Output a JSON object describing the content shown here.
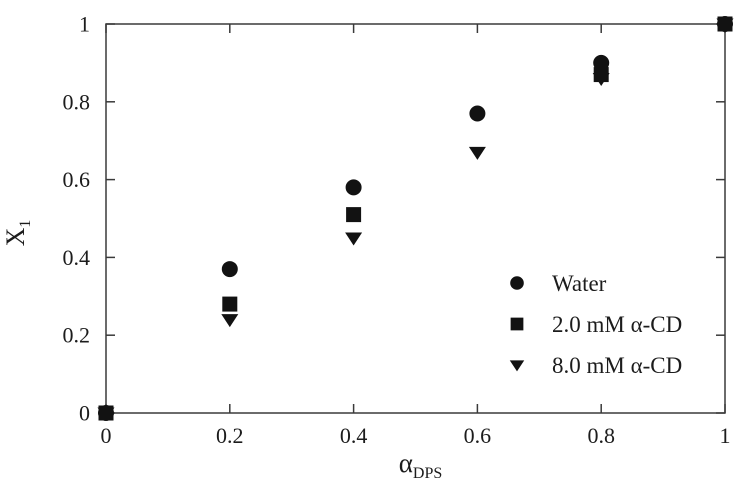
{
  "figure": {
    "background": "#ffffff",
    "marker_color": "#121212",
    "axis_color": "#3a3a3a",
    "text_color": "#1c1c1c"
  },
  "chart_data": {
    "type": "scatter",
    "title": "",
    "xlabel": {
      "main": "α",
      "sub": "DPS"
    },
    "ylabel": {
      "main": "X",
      "sub": "1"
    },
    "xlim": [
      0,
      1
    ],
    "ylim": [
      0,
      1
    ],
    "grid": false,
    "x": [
      0,
      0.2,
      0.4,
      0.6,
      0.8,
      1
    ],
    "x_tick_labels": [
      "0",
      "0.2",
      "0.4",
      "0.6",
      "0.8",
      "1"
    ],
    "y_ticks": [
      0,
      0.2,
      0.4,
      0.6,
      0.8,
      1
    ],
    "y_tick_labels": [
      "0",
      "0.2",
      "0.4",
      "0.6",
      "0.8",
      "1"
    ],
    "legend_position": "inside-right-lower",
    "series": [
      {
        "name": "Water",
        "marker": "circle",
        "values": [
          0,
          0.37,
          0.58,
          0.77,
          0.9,
          1.0
        ]
      },
      {
        "name": "2.0 mM α-CD",
        "marker": "square",
        "values": [
          0,
          0.28,
          0.51,
          null,
          0.87,
          1.0
        ]
      },
      {
        "name": "8.0 mM α-CD",
        "marker": "triangle-down",
        "values": [
          0,
          0.24,
          0.45,
          0.67,
          0.86,
          1.0
        ]
      }
    ]
  }
}
